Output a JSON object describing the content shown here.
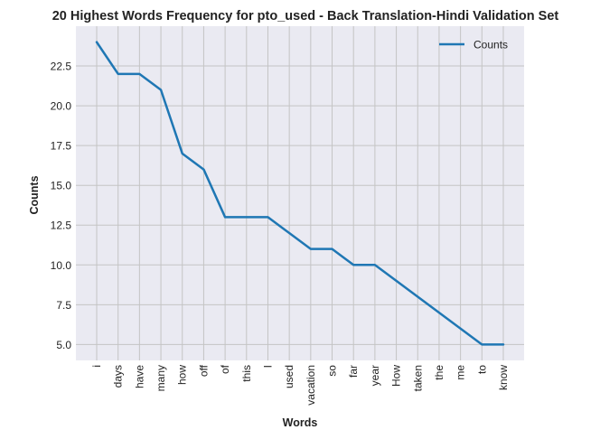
{
  "chart_data": {
    "type": "line",
    "title": "20 Highest Words Frequency for pto_used - Back Translation-Hindi Validation Set",
    "xlabel": "Words",
    "ylabel": "Counts",
    "categories": [
      "i",
      "days",
      "have",
      "many",
      "how",
      "off",
      "of",
      "this",
      "I",
      "used",
      "vacation",
      "so",
      "far",
      "year",
      "How",
      "taken",
      "the",
      "me",
      "to",
      "know"
    ],
    "series": [
      {
        "name": "Counts",
        "values": [
          24,
          22,
          22,
          21,
          17,
          16,
          13,
          13,
          13,
          12,
          11,
          11,
          10,
          10,
          9,
          8,
          7,
          6,
          5,
          5
        ]
      }
    ],
    "ylim": [
      4.0,
      25.0
    ],
    "yticks": [
      "5.0",
      "7.5",
      "10.0",
      "12.5",
      "15.0",
      "17.5",
      "20.0",
      "22.5"
    ],
    "grid": true,
    "legend_position": "top-right",
    "colors": {
      "line": "#1f77b4",
      "plot_background": "#eaeaf2",
      "grid": "#c4c4c4"
    }
  }
}
